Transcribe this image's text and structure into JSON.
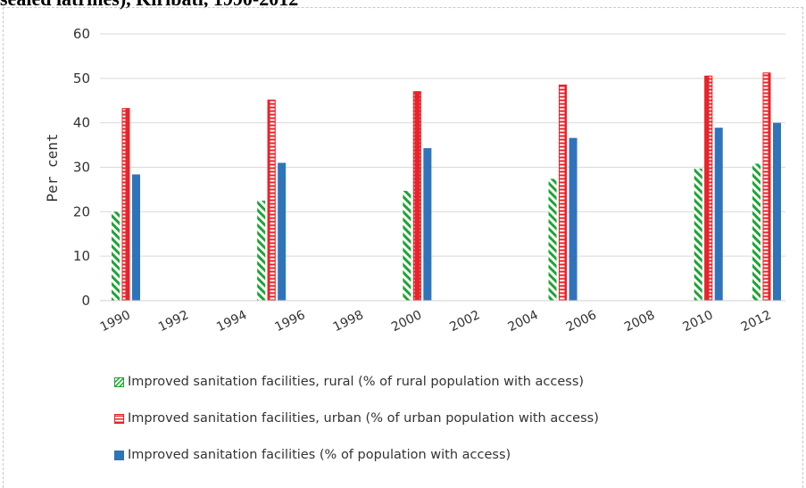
{
  "title_fragment": "sealed latrines), Kiribati, 1990-2012",
  "colors": {
    "rural": "#1aa531",
    "urban": "#e8232a",
    "total": "#2f74bb",
    "grid": "#d9d9d9",
    "text": "#333333"
  },
  "chart_data": {
    "type": "bar",
    "title": "sealed latrines), Kiribati, 1990-2012",
    "xlabel": "",
    "ylabel": "Per cent",
    "ylim": [
      0,
      60
    ],
    "yticks": [
      0,
      10,
      20,
      30,
      40,
      50,
      60
    ],
    "x_ticks": [
      "1990",
      "1992",
      "1994",
      "1996",
      "1998",
      "2000",
      "2002",
      "2004",
      "2006",
      "2008",
      "2010",
      "2012"
    ],
    "categories": [
      "1990",
      "1995",
      "2000",
      "2005",
      "2010",
      "2012"
    ],
    "grid": true,
    "legend_position": "bottom",
    "series": [
      {
        "name": "Improved sanitation facilities, rural (% of rural population with access)",
        "key": "rural",
        "pattern": "diagonal-hatch",
        "values": [
          20,
          22.5,
          24.7,
          27.4,
          29.7,
          30.8
        ]
      },
      {
        "name": "Improved sanitation facilities, urban (% of urban population with access)",
        "key": "urban",
        "pattern": "ladder",
        "values": [
          43.3,
          45.2,
          47.1,
          48.6,
          50.6,
          51.3
        ]
      },
      {
        "name": "Improved sanitation facilities (% of population with access)",
        "key": "total",
        "pattern": "solid",
        "values": [
          28.4,
          31,
          34.3,
          36.6,
          38.9,
          40
        ]
      }
    ]
  }
}
